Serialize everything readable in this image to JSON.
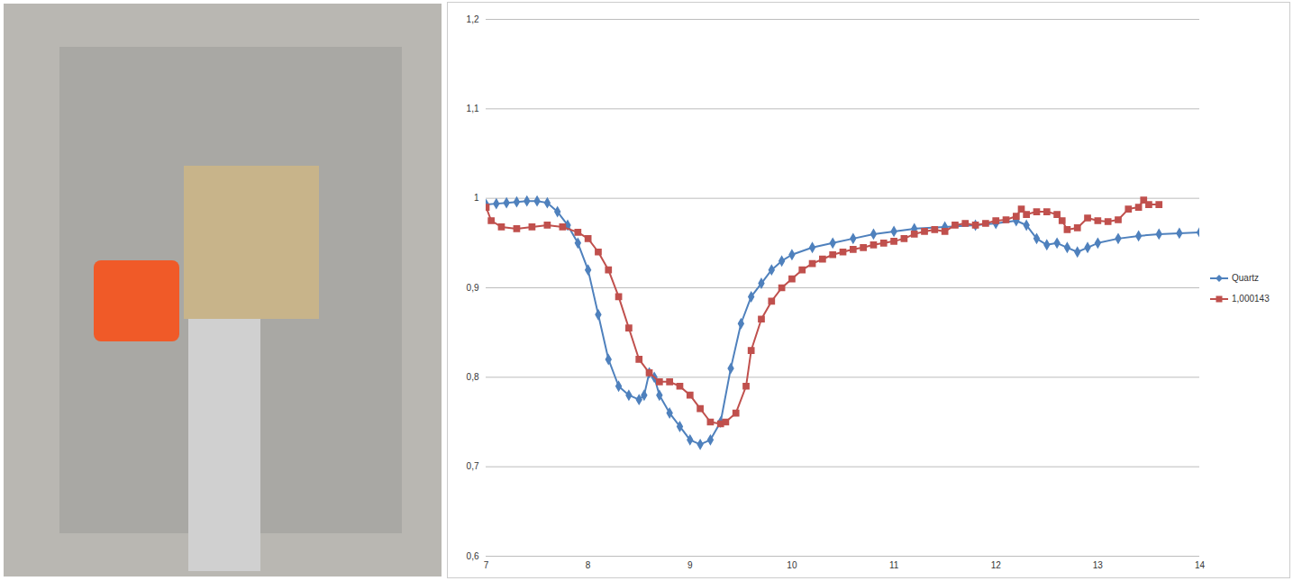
{
  "chart_data": {
    "type": "line",
    "xlim": [
      7,
      14
    ],
    "xticks": [
      7,
      8,
      9,
      10,
      11,
      12,
      13,
      14
    ],
    "ylim": [
      0.6,
      1.2
    ],
    "yticks": [
      {
        "value": 0.6,
        "label": "0,6"
      },
      {
        "value": 0.7,
        "label": "0,7"
      },
      {
        "value": 0.8,
        "label": "0,8"
      },
      {
        "value": 0.9,
        "label": "0,9"
      },
      1,
      {
        "value": 1.1,
        "label": "1,1"
      },
      {
        "value": 1.2,
        "label": "1,2"
      }
    ],
    "grid": true,
    "legend": "right",
    "series": [
      {
        "name": "Quartz",
        "color": "#4f81bd",
        "marker": "diamond",
        "line_style": "solid",
        "x": [
          7.0,
          7.1,
          7.2,
          7.3,
          7.4,
          7.5,
          7.6,
          7.7,
          7.8,
          7.9,
          8.0,
          8.1,
          8.2,
          8.3,
          8.4,
          8.5,
          8.55,
          8.6,
          8.65,
          8.7,
          8.8,
          8.9,
          9.0,
          9.1,
          9.2,
          9.3,
          9.4,
          9.5,
          9.6,
          9.7,
          9.8,
          9.9,
          10.0,
          10.2,
          10.4,
          10.6,
          10.8,
          11.0,
          11.2,
          11.5,
          11.8,
          12.0,
          12.2,
          12.3,
          12.4,
          12.5,
          12.6,
          12.7,
          12.8,
          12.9,
          13.0,
          13.2,
          13.4,
          13.6,
          13.8,
          14.0
        ],
        "values": [
          0.993,
          0.994,
          0.995,
          0.996,
          0.997,
          0.997,
          0.995,
          0.985,
          0.97,
          0.95,
          0.92,
          0.87,
          0.82,
          0.79,
          0.78,
          0.775,
          0.78,
          0.805,
          0.8,
          0.78,
          0.76,
          0.745,
          0.73,
          0.725,
          0.73,
          0.75,
          0.81,
          0.86,
          0.89,
          0.905,
          0.92,
          0.93,
          0.937,
          0.945,
          0.95,
          0.955,
          0.96,
          0.963,
          0.966,
          0.968,
          0.97,
          0.972,
          0.975,
          0.97,
          0.955,
          0.948,
          0.95,
          0.945,
          0.94,
          0.945,
          0.95,
          0.955,
          0.958,
          0.96,
          0.961,
          0.962
        ]
      },
      {
        "name": "1,000143",
        "color": "#c0504d",
        "marker": "square",
        "line_style": "solid",
        "x": [
          7.0,
          7.05,
          7.15,
          7.3,
          7.45,
          7.6,
          7.75,
          7.9,
          8.0,
          8.1,
          8.2,
          8.3,
          8.4,
          8.5,
          8.6,
          8.7,
          8.8,
          8.9,
          9.0,
          9.1,
          9.2,
          9.3,
          9.35,
          9.45,
          9.55,
          9.6,
          9.7,
          9.8,
          9.9,
          10.0,
          10.1,
          10.2,
          10.3,
          10.4,
          10.5,
          10.6,
          10.7,
          10.8,
          10.9,
          11.0,
          11.1,
          11.2,
          11.3,
          11.4,
          11.5,
          11.6,
          11.7,
          11.8,
          11.9,
          12.0,
          12.1,
          12.2,
          12.25,
          12.3,
          12.4,
          12.5,
          12.6,
          12.65,
          12.7,
          12.8,
          12.9,
          13.0,
          13.1,
          13.2,
          13.3,
          13.4,
          13.45,
          13.5,
          13.6
        ],
        "values": [
          0.99,
          0.975,
          0.968,
          0.966,
          0.968,
          0.97,
          0.968,
          0.962,
          0.955,
          0.94,
          0.92,
          0.89,
          0.855,
          0.82,
          0.805,
          0.795,
          0.795,
          0.79,
          0.78,
          0.765,
          0.75,
          0.748,
          0.75,
          0.76,
          0.79,
          0.83,
          0.865,
          0.885,
          0.9,
          0.91,
          0.92,
          0.927,
          0.932,
          0.937,
          0.94,
          0.943,
          0.945,
          0.948,
          0.95,
          0.952,
          0.955,
          0.96,
          0.963,
          0.965,
          0.963,
          0.97,
          0.972,
          0.97,
          0.972,
          0.975,
          0.976,
          0.98,
          0.988,
          0.982,
          0.985,
          0.985,
          0.982,
          0.975,
          0.965,
          0.967,
          0.978,
          0.975,
          0.974,
          0.976,
          0.988,
          0.99,
          0.998,
          0.993,
          0.993
        ]
      }
    ]
  }
}
